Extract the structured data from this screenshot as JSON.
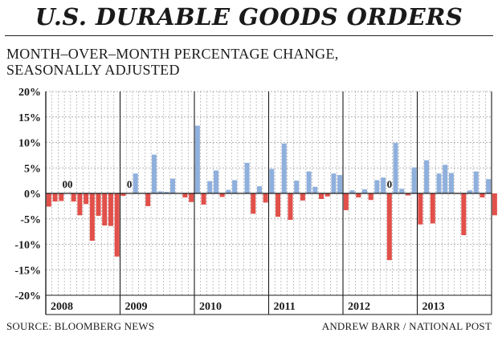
{
  "header": {
    "title": "U.S. DURABLE GOODS ORDERS",
    "subtitle_line1": "MONTH–OVER–MONTH PERCENTAGE CHANGE,",
    "subtitle_line2": "SEASONALLY ADJUSTED"
  },
  "footer": {
    "source": "SOURCE: BLOOMBERG NEWS",
    "credit": "ANDREW BARR / NATIONAL POST"
  },
  "colors": {
    "positive": "#8fb0dd",
    "negative": "#e2504a",
    "grid": "#9a9a9a",
    "axis": "#1a1a1a"
  },
  "chart_data": {
    "type": "bar",
    "title": "U.S. DURABLE GOODS ORDERS",
    "subtitle": "MONTH–OVER–MONTH PERCENTAGE CHANGE, SEASONALLY ADJUSTED",
    "xlabel": "",
    "ylabel": "",
    "ylim": [
      -20,
      20
    ],
    "y_ticks": [
      20,
      15,
      10,
      5,
      0,
      -5,
      -10,
      -15,
      -20
    ],
    "y_tick_labels": [
      "20%",
      "15%",
      "10%",
      "5%",
      "0%",
      "-5%",
      "-10%",
      "-15%",
      "-20%"
    ],
    "years": [
      "2008",
      "2009",
      "2010",
      "2011",
      "2012",
      "2013"
    ],
    "months_per_year": 12,
    "values": [
      -2.6,
      -1.6,
      -1.5,
      0.0,
      -1.6,
      -4.3,
      -2.1,
      -9.3,
      -4.4,
      -6.3,
      -6.4,
      -12.4,
      -0.5,
      0.0,
      3.9,
      0.0,
      -2.5,
      7.6,
      0.4,
      0.3,
      2.9,
      0.0,
      -0.8,
      -1.7,
      13.3,
      -2.2,
      2.4,
      4.5,
      -0.7,
      0.7,
      2.6,
      0.0,
      6.0,
      -4.0,
      1.4,
      -1.8,
      4.8,
      -4.6,
      9.8,
      -5.2,
      2.5,
      -1.4,
      4.3,
      1.3,
      -1.1,
      -0.6,
      3.9,
      3.6,
      -3.3,
      0.6,
      -0.8,
      0.8,
      -1.3,
      2.6,
      3.1,
      -13.1,
      9.9,
      0.9,
      -0.4,
      5.1,
      -6.1,
      6.5,
      -5.9,
      3.9,
      5.6,
      4.0,
      -0.1,
      -8.2,
      0.6,
      4.3,
      -0.8,
      2.8,
      -4.3
    ],
    "annotations": [
      {
        "text": "00",
        "month_index": 3
      },
      {
        "text": "0",
        "month_index": 13
      },
      {
        "text": "0",
        "month_index": 55
      }
    ],
    "grid": true,
    "legend": "none"
  }
}
